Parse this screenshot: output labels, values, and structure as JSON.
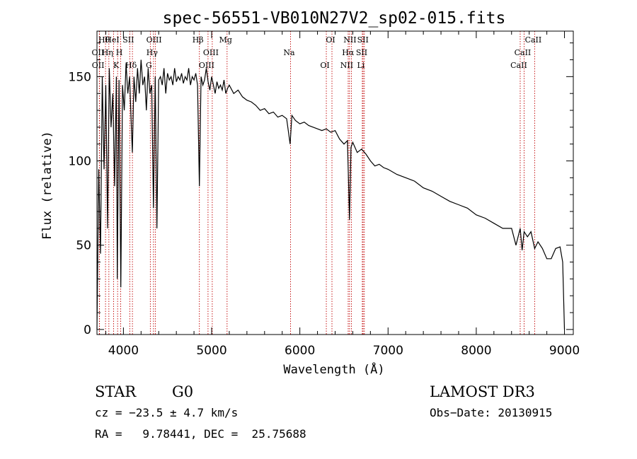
{
  "chart_data": {
    "type": "line",
    "title": "spec-56551-VB010N27V2_sp02-015.fits",
    "xlabel": "Wavelength (Å)",
    "ylabel": "Flux (relative)",
    "xlim": [
      3700,
      9100
    ],
    "ylim": [
      -3,
      177
    ],
    "x_ticks": [
      4000,
      5000,
      6000,
      7000,
      8000,
      9000
    ],
    "y_ticks": [
      0,
      50,
      100,
      150
    ],
    "series": [
      {
        "name": "flux",
        "x": [
          3700,
          3720,
          3740,
          3760,
          3780,
          3800,
          3820,
          3840,
          3860,
          3880,
          3900,
          3920,
          3930,
          3950,
          3970,
          3990,
          4010,
          4030,
          4050,
          4070,
          4090,
          4101,
          4120,
          4140,
          4160,
          4180,
          4200,
          4220,
          4240,
          4260,
          4280,
          4300,
          4320,
          4340,
          4360,
          4380,
          4400,
          4420,
          4440,
          4460,
          4480,
          4500,
          4520,
          4540,
          4560,
          4580,
          4600,
          4620,
          4640,
          4660,
          4680,
          4700,
          4720,
          4740,
          4760,
          4780,
          4800,
          4820,
          4840,
          4861,
          4880,
          4900,
          4920,
          4940,
          4960,
          4980,
          5000,
          5020,
          5040,
          5060,
          5080,
          5100,
          5120,
          5140,
          5160,
          5180,
          5200,
          5250,
          5300,
          5350,
          5400,
          5450,
          5500,
          5550,
          5600,
          5650,
          5700,
          5750,
          5800,
          5850,
          5890,
          5910,
          5950,
          6000,
          6050,
          6100,
          6150,
          6200,
          6250,
          6300,
          6350,
          6400,
          6450,
          6500,
          6540,
          6563,
          6580,
          6600,
          6650,
          6700,
          6750,
          6800,
          6850,
          6900,
          6950,
          7000,
          7100,
          7200,
          7300,
          7400,
          7500,
          7600,
          7700,
          7800,
          7900,
          8000,
          8100,
          8200,
          8300,
          8400,
          8450,
          8498,
          8520,
          8542,
          8580,
          8620,
          8662,
          8700,
          8750,
          8800,
          8850,
          8900,
          8950,
          8980,
          9000
        ],
        "values": [
          0,
          95,
          45,
          150,
          95,
          145,
          60,
          155,
          120,
          140,
          85,
          150,
          30,
          148,
          25,
          145,
          130,
          158,
          140,
          150,
          120,
          105,
          150,
          135,
          155,
          140,
          160,
          145,
          150,
          130,
          155,
          140,
          145,
          72,
          150,
          60,
          148,
          150,
          145,
          155,
          140,
          152,
          148,
          150,
          145,
          155,
          147,
          150,
          148,
          152,
          146,
          150,
          148,
          155,
          145,
          150,
          148,
          152,
          145,
          85,
          150,
          145,
          148,
          155,
          147,
          142,
          150,
          145,
          140,
          147,
          143,
          145,
          142,
          148,
          140,
          143,
          145,
          140,
          142,
          138,
          136,
          135,
          133,
          130,
          131,
          128,
          129,
          126,
          127,
          125,
          110,
          127,
          124,
          122,
          123,
          121,
          120,
          119,
          118,
          119,
          117,
          118,
          113,
          110,
          112,
          65,
          108,
          111,
          105,
          107,
          104,
          100,
          97,
          98,
          96,
          95,
          92,
          90,
          88,
          84,
          82,
          79,
          76,
          74,
          72,
          68,
          66,
          63,
          60,
          60,
          50,
          60,
          47,
          58,
          55,
          58,
          48,
          52,
          48,
          42,
          42,
          48,
          49,
          40,
          0
        ]
      }
    ],
    "annotations": [
      {
        "label": "Hθ",
        "x": 3797
      },
      {
        "label": "OII",
        "x": 3727
      },
      {
        "label": "OII",
        "x": 3729
      },
      {
        "label": "HeI",
        "x": 3889
      },
      {
        "label": "Hη",
        "x": 3835
      },
      {
        "label": "K",
        "x": 3934
      },
      {
        "label": "SII",
        "x": 4072
      },
      {
        "label": "H",
        "x": 3969
      },
      {
        "label": "Hδ",
        "x": 4102
      },
      {
        "label": "OIII",
        "x": 4363
      },
      {
        "label": "Hγ",
        "x": 4341
      },
      {
        "label": "G",
        "x": 4305
      },
      {
        "label": "Hβ",
        "x": 4861
      },
      {
        "label": "OIII",
        "x": 5007
      },
      {
        "label": "OIII",
        "x": 4959
      },
      {
        "label": "Mg",
        "x": 5175
      },
      {
        "label": "Na",
        "x": 5894
      },
      {
        "label": "OI",
        "x": 6300
      },
      {
        "label": "OI",
        "x": 6364
      },
      {
        "label": "Hα",
        "x": 6563
      },
      {
        "label": "NII",
        "x": 6548
      },
      {
        "label": "NII",
        "x": 6584
      },
      {
        "label": "SII",
        "x": 6717
      },
      {
        "label": "Li",
        "x": 6708
      },
      {
        "label": "SII",
        "x": 6731
      },
      {
        "label": "CaII",
        "x": 8542
      },
      {
        "label": "CaII",
        "x": 8498
      },
      {
        "label": "CaII",
        "x": 8662
      }
    ]
  },
  "info": {
    "class": "STAR",
    "subclass": "G0",
    "survey": "LAMOST DR3",
    "cz": "cz = −23.5 ± 4.7 km/s",
    "obs_date": "Obs−Date: 20130915",
    "coords": "RA =   9.78441, DEC =  25.75688"
  }
}
